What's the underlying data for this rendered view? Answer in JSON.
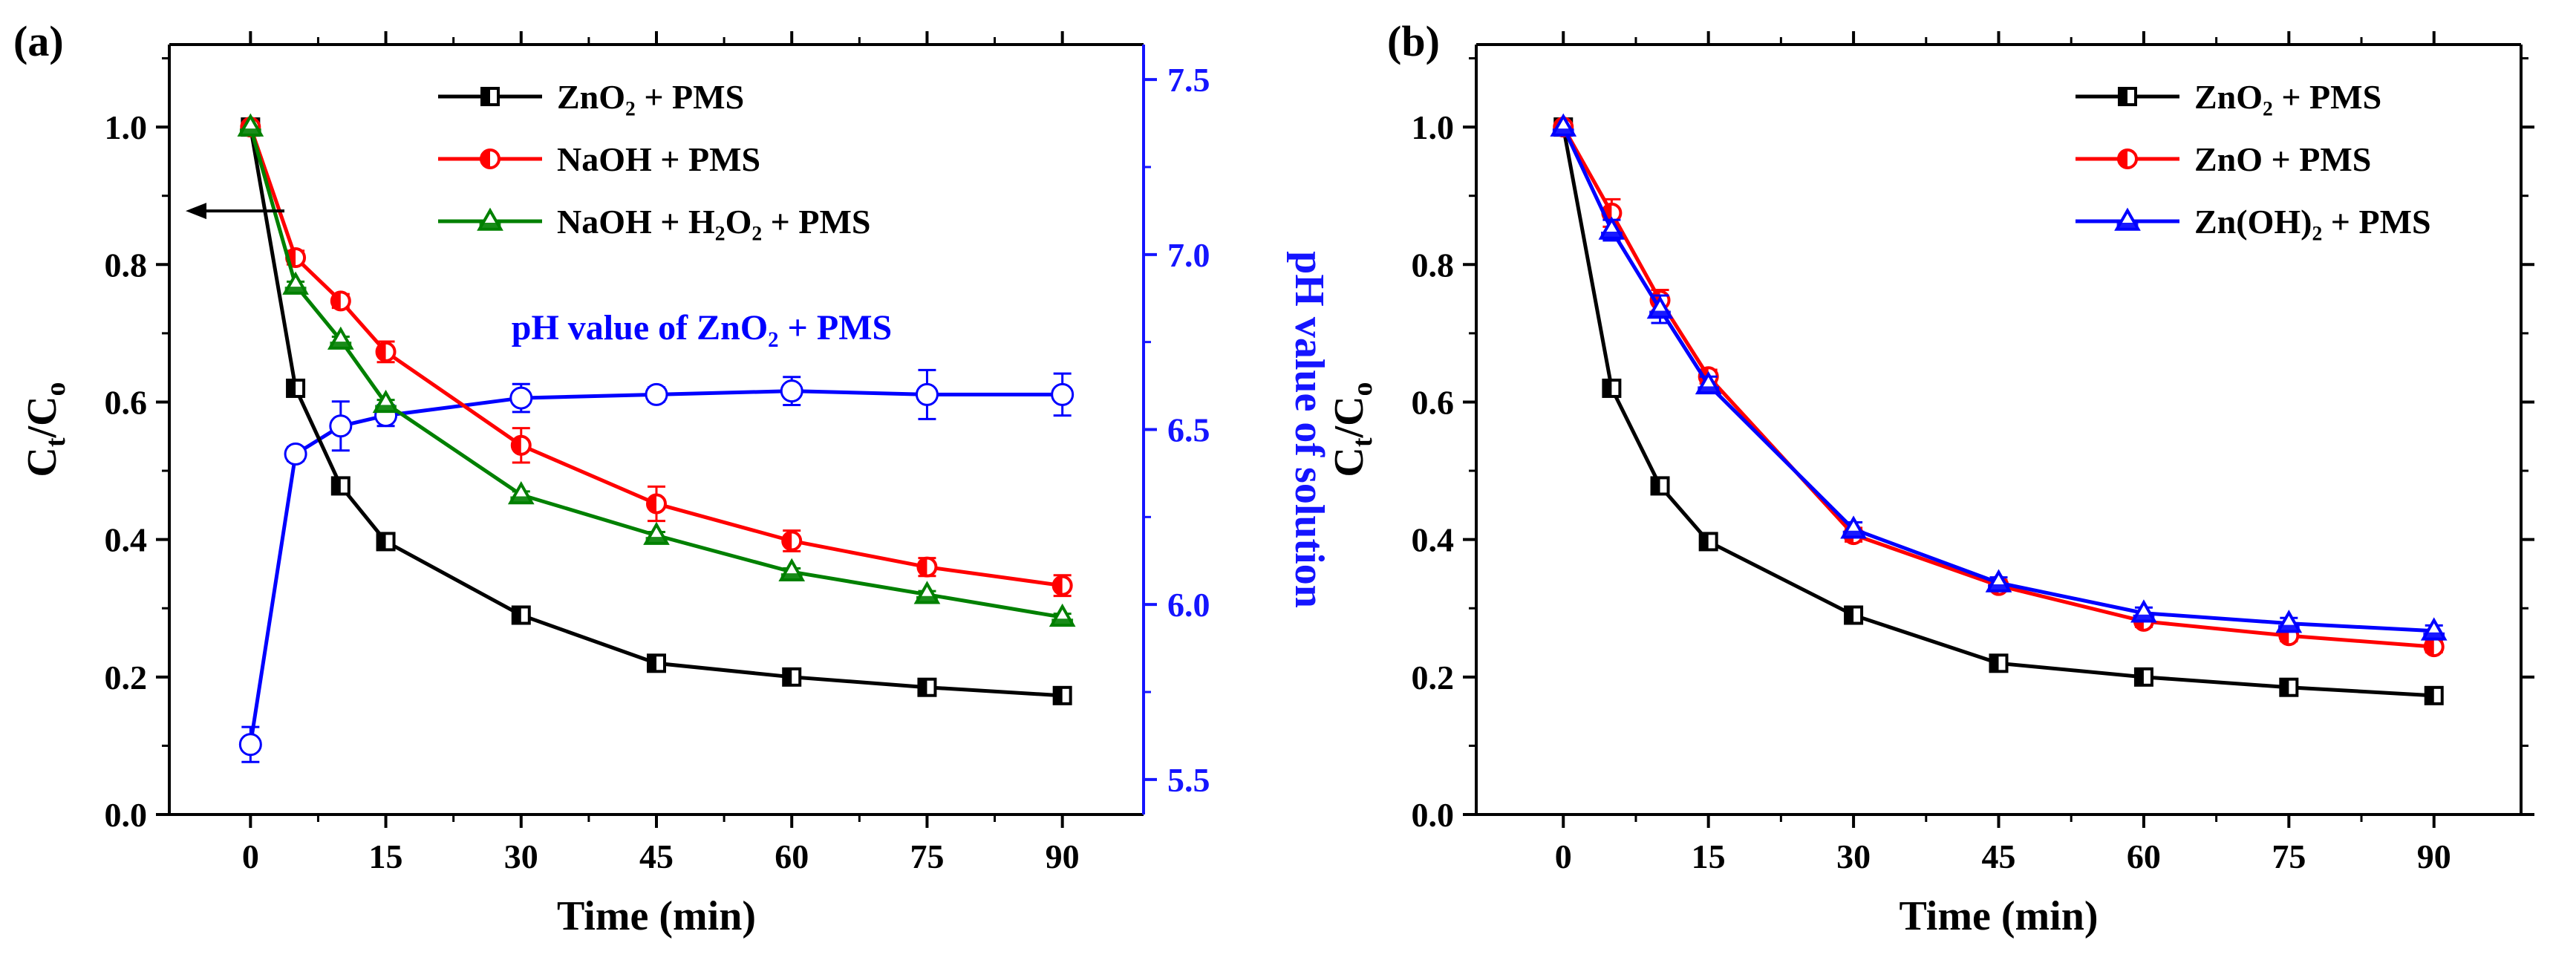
{
  "colors": {
    "black": "#000000",
    "red": "#ff0000",
    "green": "#008000",
    "blue": "#0000ff",
    "blue_axis": "#1515ff"
  },
  "chart_data": [
    {
      "panel": "(a)",
      "type": "line",
      "xlabel": "Time (min)",
      "ylabel": "Ct/C0",
      "xlim": [
        -9,
        99
      ],
      "ylim": [
        0,
        1.12
      ],
      "x_ticks": [
        0,
        15,
        30,
        45,
        60,
        75,
        90
      ],
      "y_ticks": [
        0.0,
        0.2,
        0.4,
        0.6,
        0.8,
        1.0
      ],
      "y_tick_labels": [
        "0.0",
        "0.2",
        "0.4",
        "0.6",
        "0.8",
        "1.0"
      ],
      "x": [
        0,
        5,
        10,
        15,
        30,
        45,
        60,
        75,
        90
      ],
      "series": [
        {
          "name": "ZnO₂ + PMS",
          "color": "black",
          "marker": "square-half",
          "axis": "left",
          "values": [
            1.0,
            0.62,
            0.478,
            0.397,
            0.29,
            0.22,
            0.2,
            0.185,
            0.173
          ],
          "errors": [
            0,
            0.01,
            0.01,
            0.01,
            0.01,
            0.01,
            0.01,
            0.01,
            0.01
          ]
        },
        {
          "name": "NaOH + PMS",
          "color": "red",
          "marker": "circle-half",
          "axis": "left",
          "values": [
            1.0,
            0.81,
            0.747,
            0.673,
            0.537,
            0.452,
            0.398,
            0.36,
            0.333
          ],
          "errors": [
            0,
            0.01,
            0.01,
            0.015,
            0.025,
            0.025,
            0.015,
            0.013,
            0.015
          ]
        },
        {
          "name": "NaOH + H₂O₂ + PMS",
          "color": "green",
          "marker": "triangle-half",
          "axis": "left",
          "values": [
            1.0,
            0.77,
            0.69,
            0.598,
            0.465,
            0.406,
            0.353,
            0.32,
            0.287
          ],
          "errors": [
            0,
            0.005,
            0.005,
            0.005,
            0.005,
            0.005,
            0.005,
            0.005,
            0.005
          ]
        },
        {
          "name": "pH value of ZnO₂ + PMS",
          "color": "blue",
          "marker": "circle-open",
          "axis": "right",
          "values": [
            5.6,
            6.43,
            6.51,
            6.54,
            6.59,
            6.6,
            6.61,
            6.6,
            6.6
          ],
          "errors": [
            0.05,
            0.02,
            0.07,
            0.03,
            0.04,
            0.02,
            0.04,
            0.07,
            0.06
          ]
        }
      ],
      "right_axis": {
        "label": "pH value of solution",
        "lim": [
          5.4,
          7.6
        ],
        "ticks": [
          5.5,
          6.0,
          6.5,
          7.0,
          7.5
        ],
        "tick_labels": [
          "5.5",
          "6.0",
          "6.5",
          "7.0",
          "7.5"
        ]
      },
      "annotation": "pH value of ZnO₂ + PMS",
      "legend": [
        "ZnO₂ + PMS",
        "NaOH + PMS",
        "NaOH + H₂O₂ + PMS"
      ],
      "legend_position": "top-right"
    },
    {
      "panel": "(b)",
      "type": "line",
      "xlabel": "Time (min)",
      "ylabel": "Ct/C0",
      "xlim": [
        -9,
        99
      ],
      "ylim": [
        0,
        1.12
      ],
      "x_ticks": [
        0,
        15,
        30,
        45,
        60,
        75,
        90
      ],
      "y_ticks": [
        0.0,
        0.2,
        0.4,
        0.6,
        0.8,
        1.0
      ],
      "y_tick_labels": [
        "0.0",
        "0.2",
        "0.4",
        "0.6",
        "0.8",
        "1.0"
      ],
      "x": [
        0,
        5,
        10,
        15,
        30,
        45,
        60,
        75,
        90
      ],
      "series": [
        {
          "name": "ZnO₂ + PMS",
          "color": "black",
          "marker": "square-half",
          "values": [
            1.0,
            0.62,
            0.478,
            0.397,
            0.29,
            0.22,
            0.2,
            0.185,
            0.173
          ],
          "errors": [
            0,
            0.01,
            0.01,
            0.01,
            0.01,
            0.01,
            0.01,
            0.01,
            0.01
          ]
        },
        {
          "name": "ZnO + PMS",
          "color": "red",
          "marker": "circle-half",
          "values": [
            1.0,
            0.875,
            0.748,
            0.637,
            0.407,
            0.333,
            0.281,
            0.26,
            0.244
          ],
          "errors": [
            0,
            0.02,
            0.015,
            0.01,
            0.01,
            0.008,
            0.008,
            0.008,
            0.008
          ]
        },
        {
          "name": "Zn(OH)₂ + PMS",
          "color": "blue",
          "marker": "triangle-half",
          "values": [
            1.0,
            0.85,
            0.735,
            0.625,
            0.415,
            0.337,
            0.293,
            0.278,
            0.267
          ],
          "errors": [
            0,
            0.015,
            0.02,
            0.012,
            0.01,
            0.008,
            0.008,
            0.008,
            0.008
          ]
        }
      ],
      "legend": [
        "ZnO₂ + PMS",
        "ZnO + PMS",
        "Zn(OH)₂ + PMS"
      ],
      "legend_position": "top-right"
    }
  ]
}
